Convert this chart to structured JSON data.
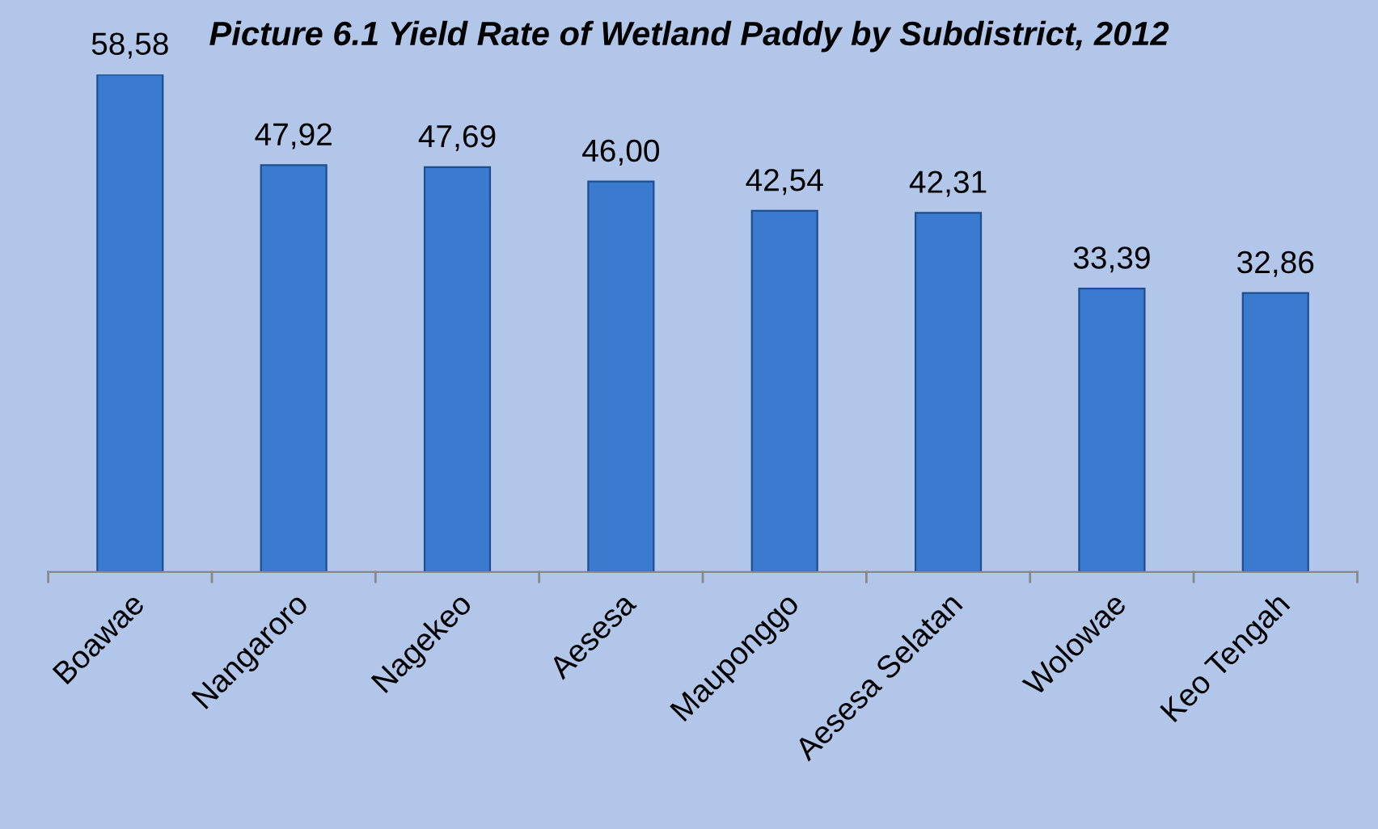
{
  "chart_data": {
    "type": "bar",
    "title": "Picture 6.1 Yield Rate of Wetland Paddy by Subdistrict, 2012",
    "categories": [
      "Boawae",
      "Nangaroro",
      "Nagekeo",
      "Aesesa",
      "Mauponggo",
      "Aesesa Selatan",
      "Wolowae",
      "Keo Tengah"
    ],
    "values": [
      58.58,
      47.92,
      47.69,
      46.0,
      42.54,
      42.31,
      33.39,
      32.86
    ],
    "value_labels": [
      "58,58",
      "47,92",
      "47,69",
      "46,00",
      "42,54",
      "42,31",
      "33,39",
      "32,86"
    ],
    "color": "#3a7bd0",
    "grid": false,
    "legend": false,
    "tick_labels": "x"
  }
}
